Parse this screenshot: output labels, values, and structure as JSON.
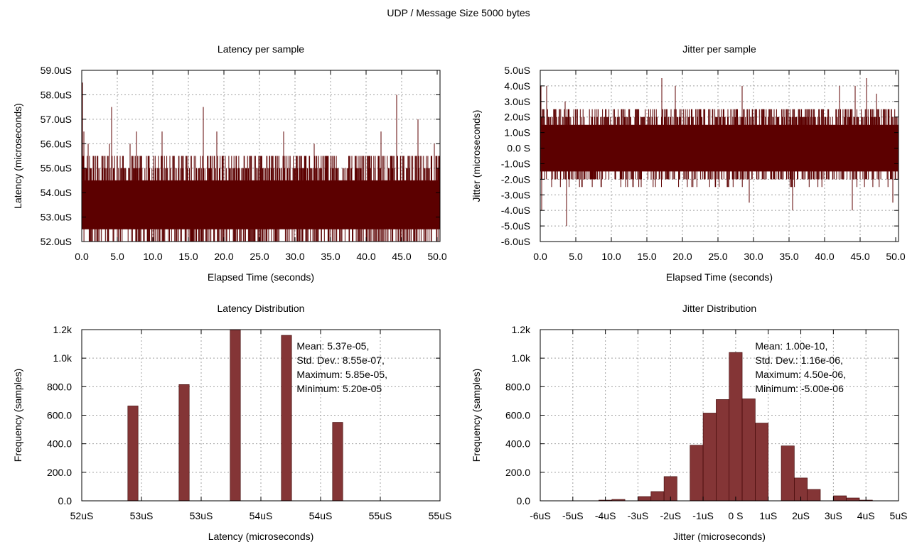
{
  "figure_title": "UDP / Message Size 5000 bytes",
  "colors": {
    "bar_fill": "#843536",
    "line": "#5c0000",
    "grid": "#a0a0a0",
    "axis": "#000000"
  },
  "chart_data": [
    {
      "id": "latency_series",
      "type": "line",
      "title": "Latency per sample",
      "xlabel": "Elapsed Time (seconds)",
      "ylabel": "Latency (microseconds)",
      "xlim": [
        0,
        50.4
      ],
      "ylim": [
        52.0,
        59.0
      ],
      "xticks": [
        "0.0",
        "5.0",
        "10.0",
        "15.0",
        "20.0",
        "25.0",
        "30.0",
        "35.0",
        "40.0",
        "45.0",
        "50.0"
      ],
      "yticks": [
        "52.0uS",
        "53.0uS",
        "54.0uS",
        "55.0uS",
        "56.0uS",
        "57.0uS",
        "58.0uS",
        "59.0uS"
      ],
      "grid": true,
      "base_band": [
        52.5,
        54.5
      ],
      "spikes": [
        {
          "x": 0.1,
          "y": 58.5
        },
        {
          "x": 0.3,
          "y": 56.5
        },
        {
          "x": 0.9,
          "y": 56.0
        },
        {
          "x": 3.9,
          "y": 56.0
        },
        {
          "x": 3.7,
          "y": 52.0
        },
        {
          "x": 4.2,
          "y": 57.5
        },
        {
          "x": 6.8,
          "y": 56.0
        },
        {
          "x": 7.7,
          "y": 56.5
        },
        {
          "x": 11.3,
          "y": 56.5
        },
        {
          "x": 17.1,
          "y": 57.5
        },
        {
          "x": 19.0,
          "y": 56.5
        },
        {
          "x": 28.4,
          "y": 56.5
        },
        {
          "x": 32.7,
          "y": 56.0
        },
        {
          "x": 35.5,
          "y": 52.0
        },
        {
          "x": 42.1,
          "y": 56.5
        },
        {
          "x": 44.3,
          "y": 58.0
        },
        {
          "x": 47.3,
          "y": 57.0
        },
        {
          "x": 49.6,
          "y": 56.0
        },
        {
          "x": 49.9,
          "y": 52.0
        }
      ]
    },
    {
      "id": "jitter_series",
      "type": "line",
      "title": "Jitter per sample",
      "xlabel": "Elapsed Time (seconds)",
      "ylabel": "Jitter (microseconds)",
      "xlim": [
        0,
        50.4
      ],
      "ylim": [
        -6.0,
        5.0
      ],
      "xticks": [
        "0.0",
        "5.0",
        "10.0",
        "15.0",
        "20.0",
        "25.0",
        "30.0",
        "35.0",
        "40.0",
        "45.0",
        "50.0"
      ],
      "yticks": [
        "-6.0uS",
        "-5.0uS",
        "-4.0uS",
        "-3.0uS",
        "-2.0uS",
        "-1.0uS",
        "0.0 S",
        "1.0uS",
        "2.0uS",
        "3.0uS",
        "4.0uS",
        "5.0uS"
      ],
      "grid": true,
      "base_band": [
        -1.5,
        1.5
      ],
      "spikes": [
        {
          "x": 0.1,
          "y": 4.0
        },
        {
          "x": 0.9,
          "y": 4.0
        },
        {
          "x": 0.2,
          "y": -4.0
        },
        {
          "x": 3.5,
          "y": 3.0
        },
        {
          "x": 3.7,
          "y": -5.0
        },
        {
          "x": 17.1,
          "y": 4.5
        },
        {
          "x": 19.0,
          "y": 4.0
        },
        {
          "x": 28.4,
          "y": 4.0
        },
        {
          "x": 29.4,
          "y": -3.5
        },
        {
          "x": 35.5,
          "y": -4.0
        },
        {
          "x": 42.1,
          "y": 4.0
        },
        {
          "x": 43.9,
          "y": -4.0
        },
        {
          "x": 44.3,
          "y": 4.0
        },
        {
          "x": 45.9,
          "y": 4.5
        },
        {
          "x": 47.3,
          "y": 3.5
        },
        {
          "x": 49.6,
          "y": -3.5
        }
      ]
    },
    {
      "id": "latency_hist",
      "type": "bar",
      "title": "Latency Distribution",
      "xlabel": "Latency (microseconds)",
      "ylabel": "Frequency (samples)",
      "xlim": [
        52.0,
        55.5
      ],
      "ylim": [
        0,
        1200
      ],
      "xticks": [
        "52uS",
        "53uS",
        "53uS",
        "54uS",
        "54uS",
        "55uS",
        "55uS"
      ],
      "yticks": [
        "0.0",
        "200.0",
        "400.0",
        "600.0",
        "800.0",
        "1.0k",
        "1.2k"
      ],
      "grid": true,
      "bar_width": 0.1,
      "bars": [
        {
          "x": 52.5,
          "value": 665
        },
        {
          "x": 53.0,
          "value": 815
        },
        {
          "x": 53.5,
          "value": 1200
        },
        {
          "x": 54.0,
          "value": 1160
        },
        {
          "x": 54.5,
          "value": 550
        }
      ],
      "annotation": [
        "Mean: 5.37e-05,",
        "Std. Dev.: 8.55e-07,",
        "Maximum: 5.85e-05,",
        "Minimum: 5.20e-05"
      ]
    },
    {
      "id": "jitter_hist",
      "type": "bar",
      "title": "Jitter Distribution",
      "xlabel": "Jitter (microseconds)",
      "ylabel": "Frequency (samples)",
      "xlim": [
        -6,
        5
      ],
      "ylim": [
        0,
        1200
      ],
      "xticks": [
        "-6uS",
        "-5uS",
        "-4uS",
        "-3uS",
        "-2uS",
        "-1uS",
        "0 S",
        "1uS",
        "2uS",
        "3uS",
        "4uS",
        "5uS"
      ],
      "yticks": [
        "0.0",
        "200.0",
        "400.0",
        "600.0",
        "800.0",
        "1.0k",
        "1.2k"
      ],
      "grid": true,
      "bar_width": 0.4,
      "bars": [
        {
          "x": -4.0,
          "value": 5
        },
        {
          "x": -3.6,
          "value": 10
        },
        {
          "x": -2.8,
          "value": 30
        },
        {
          "x": -2.4,
          "value": 65
        },
        {
          "x": -2.0,
          "value": 170
        },
        {
          "x": -1.2,
          "value": 390
        },
        {
          "x": -0.8,
          "value": 615
        },
        {
          "x": -0.4,
          "value": 710
        },
        {
          "x": 0.0,
          "value": 1040
        },
        {
          "x": 0.4,
          "value": 715
        },
        {
          "x": 0.8,
          "value": 545
        },
        {
          "x": 1.6,
          "value": 385
        },
        {
          "x": 2.0,
          "value": 160
        },
        {
          "x": 2.4,
          "value": 80
        },
        {
          "x": 3.2,
          "value": 35
        },
        {
          "x": 3.6,
          "value": 20
        },
        {
          "x": 4.0,
          "value": 5
        }
      ],
      "annotation": [
        "Mean: 1.00e-10,",
        "Std. Dev.: 1.16e-06,",
        "Maximum: 4.50e-06,",
        "Minimum: -5.00e-06"
      ]
    }
  ]
}
